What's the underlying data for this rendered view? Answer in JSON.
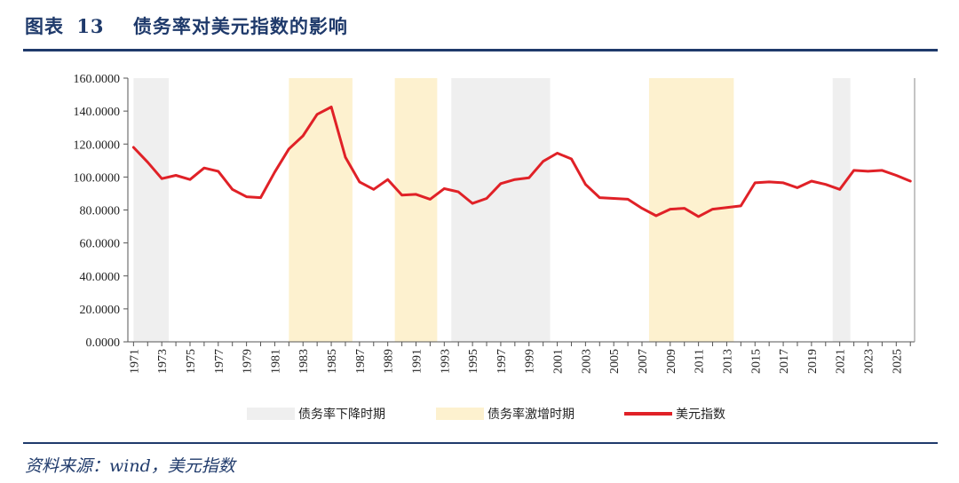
{
  "figure": {
    "label": "图表",
    "number": "13",
    "title": "债务率对美元指数的影响",
    "source": "资料来源：wind，美元指数"
  },
  "chart_data": {
    "type": "line",
    "title": "债务率对美元指数的影响",
    "xlabel": "",
    "ylabel": "",
    "ylim": [
      0,
      160
    ],
    "xlim": [
      1971,
      2026
    ],
    "y_ticks": [
      0,
      20,
      40,
      60,
      80,
      100,
      120,
      140,
      160
    ],
    "y_tick_labels": [
      "0.0000",
      "20.0000",
      "40.0000",
      "60.0000",
      "80.0000",
      "100.0000",
      "120.0000",
      "140.0000",
      "160.0000"
    ],
    "x_tick_labels": [
      "1971",
      "1973",
      "1975",
      "1977",
      "1979",
      "1981",
      "1983",
      "1985",
      "1987",
      "1989",
      "1991",
      "1993",
      "1995",
      "1997",
      "1999",
      "2001",
      "2003",
      "2005",
      "2007",
      "2009",
      "2011",
      "2013",
      "2015",
      "2017",
      "2019",
      "2021",
      "2023",
      "2025"
    ],
    "series": [
      {
        "name": "美元指数",
        "color": "#e02127",
        "x": [
          1971,
          1972,
          1973,
          1974,
          1975,
          1976,
          1977,
          1978,
          1979,
          1980,
          1981,
          1982,
          1983,
          1984,
          1985,
          1986,
          1987,
          1988,
          1989,
          1990,
          1991,
          1992,
          1993,
          1994,
          1995,
          1996,
          1997,
          1998,
          1999,
          2000,
          2001,
          2002,
          2003,
          2004,
          2005,
          2006,
          2007,
          2008,
          2009,
          2010,
          2011,
          2012,
          2013,
          2014,
          2015,
          2016,
          2017,
          2018,
          2019,
          2020,
          2021,
          2022,
          2023,
          2024,
          2025,
          2026
        ],
        "values": [
          118,
          109,
          99,
          101,
          98.5,
          105.5,
          103.5,
          92.5,
          88,
          87.5,
          103,
          117,
          125,
          138,
          142.5,
          112,
          97,
          92.5,
          98.5,
          89,
          89.5,
          86.5,
          93,
          91,
          84,
          87,
          96,
          98.5,
          99.5,
          109.5,
          114.5,
          111,
          95.5,
          87.5,
          87,
          86.5,
          81,
          76.5,
          80.5,
          81,
          76,
          80.5,
          81.5,
          82.5,
          96.5,
          97,
          96.5,
          93.5,
          97.5,
          95.5,
          92.5,
          104,
          103.5,
          104,
          101,
          97.5
        ]
      }
    ],
    "bands": [
      {
        "type": "debt_decline",
        "start": 1971,
        "end": 1973.5
      },
      {
        "type": "debt_surge",
        "start": 1982,
        "end": 1986.5
      },
      {
        "type": "debt_surge",
        "start": 1989.5,
        "end": 1992.5
      },
      {
        "type": "debt_decline",
        "start": 1993.5,
        "end": 2000.5
      },
      {
        "type": "debt_surge",
        "start": 2007.5,
        "end": 2013.5
      },
      {
        "type": "debt_decline",
        "start": 2020.5,
        "end": 2021.75
      }
    ],
    "band_colors": {
      "debt_decline": "#efefef",
      "debt_surge": "#fdf1cf"
    },
    "legend": [
      {
        "key": "debt_decline",
        "label": "债务率下降时期",
        "kind": "box",
        "color": "#efefef"
      },
      {
        "key": "debt_surge",
        "label": "债务率激增时期",
        "kind": "box",
        "color": "#fdf1cf"
      },
      {
        "key": "usd_index",
        "label": "美元指数",
        "kind": "line",
        "color": "#e02127"
      }
    ],
    "legend_position": "bottom",
    "grid": false
  }
}
